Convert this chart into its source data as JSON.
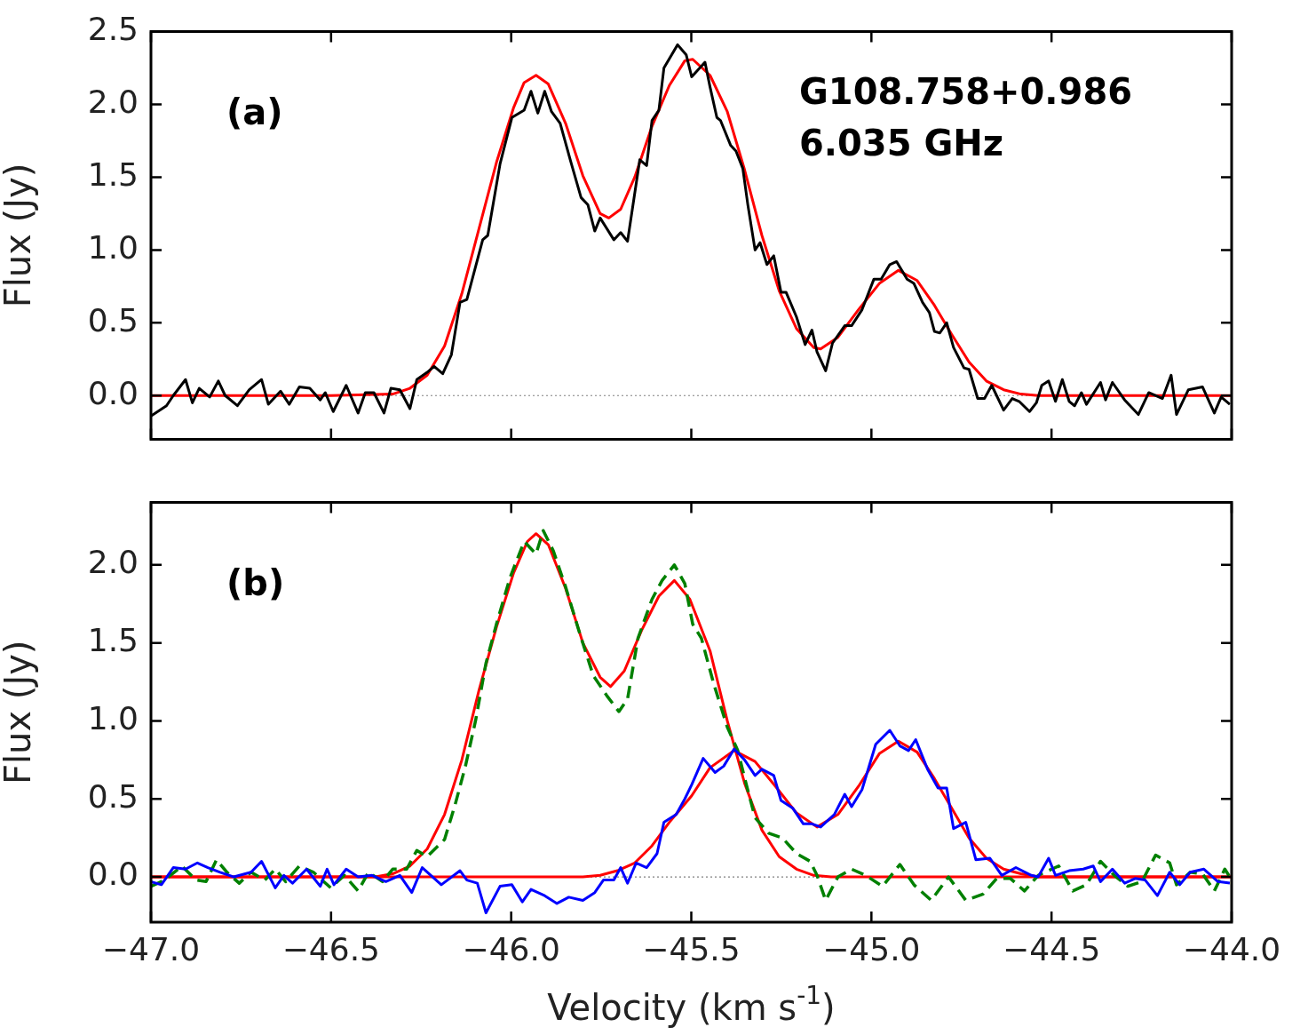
{
  "chart_data": [
    {
      "type": "line",
      "ylabel": "Flux (Jy)",
      "xlim": [
        -47,
        -44
      ],
      "ylim": [
        -0.3,
        2.5
      ],
      "xticks": [
        -47,
        -46.5,
        -46,
        -45.5,
        -45,
        -44.5,
        -44
      ],
      "yticks": [
        {
          "value": 0,
          "label": "0.0"
        },
        {
          "value": 0.5,
          "label": "0.5"
        },
        {
          "value": 1,
          "label": "1.0"
        },
        {
          "value": 1.5,
          "label": "1.5"
        },
        {
          "value": 2,
          "label": "2.0"
        },
        {
          "value": 2.5,
          "label": "2.5"
        }
      ],
      "tick_labels": "y",
      "legend": false,
      "annotations": [
        "(a)",
        "G108.758+0.986\n6.035 GHz"
      ],
      "ref_lines": [
        {
          "axis": "y",
          "value": 0,
          "color": "#808080",
          "line_style": "dotted"
        }
      ],
      "series": [
        {
          "type": "line",
          "color": "#000000",
          "line_style": "solid",
          "x": [
            -47.0,
            -46.957,
            -46.938,
            -46.904,
            -46.885,
            -46.866,
            -46.837,
            -46.813,
            -46.794,
            -46.76,
            -46.727,
            -46.693,
            -46.674,
            -46.64,
            -46.616,
            -46.588,
            -46.559,
            -46.53,
            -46.516,
            -46.494,
            -46.458,
            -46.425,
            -46.405,
            -46.381,
            -46.353,
            -46.334,
            -46.309,
            -46.281,
            -46.262,
            -46.233,
            -46.214,
            -46.19,
            -46.166,
            -46.142,
            -46.123,
            -46.079,
            -46.065,
            -46.031,
            -45.998,
            -45.964,
            -45.945,
            -45.926,
            -45.907,
            -45.888,
            -45.864,
            -45.835,
            -45.806,
            -45.787,
            -45.768,
            -45.753,
            -45.715,
            -45.696,
            -45.677,
            -45.643,
            -45.624,
            -45.609,
            -45.59,
            -45.576,
            -45.538,
            -45.514,
            -45.499,
            -45.462,
            -45.448,
            -45.429,
            -45.419,
            -45.391,
            -45.376,
            -45.357,
            -45.343,
            -45.323,
            -45.309,
            -45.29,
            -45.271,
            -45.251,
            -45.237,
            -45.208,
            -45.184,
            -45.165,
            -45.151,
            -45.127,
            -45.108,
            -45.074,
            -45.055,
            -45.026,
            -44.993,
            -44.973,
            -44.949,
            -44.93,
            -44.901,
            -44.882,
            -44.858,
            -44.839,
            -44.825,
            -44.81,
            -44.791,
            -44.772,
            -44.743,
            -44.729,
            -44.705,
            -44.686,
            -44.666,
            -44.633,
            -44.609,
            -44.59,
            -44.561,
            -44.542,
            -44.527,
            -44.508,
            -44.489,
            -44.47,
            -44.451,
            -44.436,
            -44.417,
            -44.403,
            -44.364,
            -44.35,
            -44.331,
            -44.297,
            -44.259,
            -44.23,
            -44.192,
            -44.168,
            -44.153,
            -44.12,
            -44.081,
            -44.048,
            -44.029,
            -44.005
          ],
          "values": [
            -0.14,
            -0.07,
            0.0,
            0.11,
            -0.05,
            0.05,
            -0.01,
            0.1,
            0.0,
            -0.07,
            0.04,
            0.11,
            -0.06,
            0.03,
            -0.06,
            0.06,
            0.05,
            -0.03,
            0.02,
            -0.11,
            0.07,
            -0.12,
            0.02,
            0.02,
            -0.12,
            0.05,
            0.04,
            -0.09,
            0.11,
            0.16,
            0.2,
            0.15,
            0.28,
            0.64,
            0.66,
            1.07,
            1.1,
            1.59,
            1.91,
            1.96,
            2.09,
            1.94,
            2.09,
            1.95,
            1.87,
            1.61,
            1.36,
            1.31,
            1.13,
            1.22,
            1.07,
            1.12,
            1.06,
            1.62,
            1.58,
            1.89,
            1.96,
            2.25,
            2.41,
            2.34,
            2.19,
            2.29,
            2.12,
            1.91,
            1.89,
            1.72,
            1.68,
            1.56,
            1.31,
            1.0,
            1.05,
            0.9,
            0.96,
            0.71,
            0.71,
            0.54,
            0.35,
            0.45,
            0.3,
            0.17,
            0.36,
            0.48,
            0.48,
            0.59,
            0.8,
            0.8,
            0.9,
            0.92,
            0.8,
            0.77,
            0.64,
            0.57,
            0.44,
            0.43,
            0.5,
            0.33,
            0.19,
            0.18,
            -0.02,
            -0.02,
            0.07,
            -0.1,
            -0.02,
            -0.04,
            -0.11,
            -0.05,
            0.07,
            0.1,
            -0.04,
            0.11,
            -0.04,
            -0.07,
            0.02,
            -0.06,
            0.09,
            -0.03,
            0.09,
            -0.03,
            -0.13,
            0.02,
            -0.02,
            0.14,
            -0.13,
            0.04,
            0.06,
            -0.12,
            -0.01,
            -0.06
          ]
        },
        {
          "type": "line",
          "color": "#ff0000",
          "line_style": "solid",
          "x": [
            -47.0,
            -46.5,
            -46.329,
            -46.281,
            -46.233,
            -46.185,
            -46.137,
            -46.089,
            -46.041,
            -45.993,
            -45.964,
            -45.931,
            -45.897,
            -45.849,
            -45.801,
            -45.753,
            -45.729,
            -45.696,
            -45.657,
            -45.609,
            -45.561,
            -45.518,
            -45.496,
            -45.448,
            -45.4,
            -45.352,
            -45.304,
            -45.256,
            -45.208,
            -45.16,
            -45.141,
            -45.093,
            -45.036,
            -44.978,
            -44.925,
            -44.873,
            -44.825,
            -44.777,
            -44.729,
            -44.681,
            -44.633,
            -44.585,
            -44.537,
            -44.0
          ],
          "values": [
            0,
            0,
            0.01,
            0.05,
            0.14,
            0.34,
            0.7,
            1.15,
            1.6,
            1.98,
            2.15,
            2.2,
            2.14,
            1.87,
            1.51,
            1.25,
            1.22,
            1.28,
            1.5,
            1.85,
            2.13,
            2.3,
            2.31,
            2.2,
            1.95,
            1.55,
            1.1,
            0.72,
            0.46,
            0.33,
            0.32,
            0.4,
            0.59,
            0.77,
            0.86,
            0.79,
            0.62,
            0.42,
            0.23,
            0.1,
            0.04,
            0.01,
            0,
            0
          ]
        }
      ]
    },
    {
      "type": "line",
      "xlabel": "Velocity (km s$^{-1}$)",
      "ylabel": "Flux (Jy)",
      "xlim": [
        -47,
        -44
      ],
      "ylim": [
        -0.29,
        2.4
      ],
      "xticks": [
        {
          "value": -47,
          "label": "−47.0"
        },
        {
          "value": -46.5,
          "label": "−46.5"
        },
        {
          "value": -46,
          "label": "−46.0"
        },
        {
          "value": -45.5,
          "label": "−45.5"
        },
        {
          "value": -45,
          "label": "−45.0"
        },
        {
          "value": -44.5,
          "label": "−44.5"
        },
        {
          "value": -44,
          "label": "−44.0"
        }
      ],
      "yticks": [
        {
          "value": 0,
          "label": "0.0"
        },
        {
          "value": 0.5,
          "label": "0.5"
        },
        {
          "value": 1,
          "label": "1.0"
        },
        {
          "value": 1.5,
          "label": "1.5"
        },
        {
          "value": 2,
          "label": "2.0"
        }
      ],
      "legend": false,
      "annotations": [
        "(b)"
      ],
      "ref_lines": [
        {
          "axis": "y",
          "value": 0,
          "color": "#808080",
          "line_style": "dotted"
        }
      ],
      "series": [
        {
          "type": "line",
          "color": "#0000ff",
          "line_style": "solid",
          "x": [
            -47.0,
            -46.971,
            -46.938,
            -46.904,
            -46.871,
            -46.842,
            -46.808,
            -46.77,
            -46.722,
            -46.693,
            -46.655,
            -46.631,
            -46.607,
            -46.568,
            -46.53,
            -46.511,
            -46.492,
            -46.458,
            -46.425,
            -46.386,
            -46.348,
            -46.309,
            -46.276,
            -46.247,
            -46.194,
            -46.142,
            -46.123,
            -46.094,
            -46.07,
            -46.031,
            -45.998,
            -45.969,
            -45.945,
            -45.907,
            -45.873,
            -45.84,
            -45.801,
            -45.768,
            -45.744,
            -45.715,
            -45.696,
            -45.677,
            -45.653,
            -45.624,
            -45.595,
            -45.576,
            -45.542,
            -45.518,
            -45.499,
            -45.467,
            -45.434,
            -45.41,
            -45.381,
            -45.352,
            -45.323,
            -45.304,
            -45.271,
            -45.251,
            -45.218,
            -45.189,
            -45.165,
            -45.141,
            -45.103,
            -45.074,
            -45.055,
            -45.026,
            -44.988,
            -44.949,
            -44.921,
            -44.897,
            -44.877,
            -44.844,
            -44.815,
            -44.791,
            -44.772,
            -44.738,
            -44.71,
            -44.671,
            -44.638,
            -44.599,
            -44.556,
            -44.537,
            -44.508,
            -44.489,
            -44.451,
            -44.412,
            -44.384,
            -44.364,
            -44.331,
            -44.297,
            -44.268,
            -44.24,
            -44.206,
            -44.172,
            -44.144,
            -44.115,
            -44.077,
            -44.038,
            -44.005
          ],
          "values": [
            -0.03,
            -0.05,
            0.06,
            0.05,
            0.09,
            0.06,
            0.03,
            0.0,
            0.03,
            0.1,
            -0.07,
            0.01,
            -0.04,
            0.05,
            -0.06,
            0.05,
            -0.05,
            0.05,
            0.0,
            0.01,
            -0.03,
            0.01,
            -0.1,
            0.06,
            -0.05,
            0.04,
            -0.02,
            -0.04,
            -0.23,
            -0.06,
            -0.05,
            -0.16,
            -0.08,
            -0.12,
            -0.17,
            -0.13,
            -0.15,
            -0.1,
            -0.02,
            -0.02,
            0.06,
            -0.04,
            0.09,
            0.06,
            0.15,
            0.35,
            0.4,
            0.5,
            0.59,
            0.76,
            0.67,
            0.71,
            0.82,
            0.75,
            0.65,
            0.69,
            0.65,
            0.49,
            0.44,
            0.34,
            0.34,
            0.32,
            0.4,
            0.53,
            0.45,
            0.56,
            0.85,
            0.94,
            0.84,
            0.81,
            0.88,
            0.69,
            0.57,
            0.57,
            0.31,
            0.35,
            0.11,
            0.12,
            0.01,
            0.06,
            0.01,
            0.0,
            0.12,
            0.01,
            0.04,
            0.05,
            0.07,
            -0.03,
            0.05,
            -0.04,
            -0.01,
            -0.02,
            -0.12,
            0.03,
            -0.05,
            0.03,
            0.05,
            -0.03,
            -0.04
          ]
        },
        {
          "type": "line",
          "color": "#008000",
          "line_style": "dashed",
          "x": [
            -47.0,
            -46.962,
            -46.914,
            -46.875,
            -46.847,
            -46.818,
            -46.789,
            -46.755,
            -46.722,
            -46.684,
            -46.655,
            -46.626,
            -46.588,
            -46.549,
            -46.501,
            -46.463,
            -46.425,
            -46.396,
            -46.357,
            -46.329,
            -46.29,
            -46.262,
            -46.233,
            -46.185,
            -46.156,
            -46.127,
            -46.099,
            -46.07,
            -46.041,
            -46.003,
            -45.964,
            -45.931,
            -45.911,
            -45.883,
            -45.849,
            -45.811,
            -45.772,
            -45.734,
            -45.701,
            -45.677,
            -45.648,
            -45.609,
            -45.581,
            -45.547,
            -45.518,
            -45.496,
            -45.472,
            -45.438,
            -45.4,
            -45.371,
            -45.347,
            -45.323,
            -45.285,
            -45.247,
            -45.208,
            -45.17,
            -45.151,
            -45.127,
            -45.093,
            -45.055,
            -45.016,
            -44.969,
            -44.921,
            -44.882,
            -44.834,
            -44.786,
            -44.738,
            -44.69,
            -44.652,
            -44.614,
            -44.575,
            -44.537,
            -44.48,
            -44.441,
            -44.403,
            -44.364,
            -44.326,
            -44.288,
            -44.249,
            -44.211,
            -44.172,
            -44.153,
            -44.115,
            -44.081,
            -44.048,
            -44.019,
            -44.005
          ],
          "values": [
            -0.06,
            -0.02,
            0.07,
            -0.02,
            -0.03,
            0.11,
            0.03,
            -0.04,
            0.03,
            -0.02,
            0.05,
            -0.03,
            0.07,
            0.03,
            -0.07,
            0.01,
            -0.09,
            0.03,
            -0.03,
            0.05,
            0.05,
            0.17,
            0.13,
            0.24,
            0.46,
            0.71,
            1.0,
            1.37,
            1.62,
            1.92,
            2.15,
            2.07,
            2.22,
            2.09,
            1.86,
            1.57,
            1.29,
            1.16,
            1.06,
            1.14,
            1.53,
            1.78,
            1.9,
            2.0,
            1.88,
            1.62,
            1.53,
            1.24,
            0.96,
            0.81,
            0.59,
            0.38,
            0.28,
            0.25,
            0.15,
            0.1,
            0.01,
            -0.15,
            0.0,
            0.05,
            0.01,
            -0.06,
            0.08,
            -0.05,
            -0.15,
            0.0,
            -0.15,
            -0.11,
            -0.01,
            -0.01,
            -0.09,
            0.01,
            0.07,
            -0.09,
            -0.05,
            0.1,
            0.01,
            -0.06,
            -0.03,
            0.14,
            0.09,
            -0.05,
            0.03,
            0.02,
            -0.09,
            0.05,
            0.0
          ]
        },
        {
          "type": "line",
          "color": "#ff0000",
          "line_style": "solid",
          "x": [
            -47.0,
            -46.377,
            -46.329,
            -46.281,
            -46.233,
            -46.185,
            -46.137,
            -46.089,
            -46.041,
            -45.993,
            -45.955,
            -45.931,
            -45.897,
            -45.849,
            -45.801,
            -45.753,
            -45.724,
            -45.686,
            -45.638,
            -45.59,
            -45.547,
            -45.504,
            -45.448,
            -45.4,
            -45.376,
            -45.352,
            -45.304,
            -45.256,
            -45.208,
            -45.16,
            -45.112,
            -44.0
          ],
          "values": [
            0,
            0,
            0.02,
            0.07,
            0.18,
            0.4,
            0.75,
            1.2,
            1.6,
            1.95,
            2.15,
            2.2,
            2.13,
            1.85,
            1.5,
            1.28,
            1.22,
            1.32,
            1.58,
            1.8,
            1.9,
            1.78,
            1.45,
            1.0,
            0.8,
            0.6,
            0.3,
            0.13,
            0.05,
            0.01,
            0,
            0
          ]
        },
        {
          "type": "line",
          "color": "#ff0000",
          "line_style": "solid",
          "x": [
            -47.0,
            -45.801,
            -45.753,
            -45.705,
            -45.657,
            -45.609,
            -45.561,
            -45.499,
            -45.448,
            -45.381,
            -45.323,
            -45.266,
            -45.208,
            -45.151,
            -45.093,
            -45.036,
            -44.978,
            -44.925,
            -44.873,
            -44.825,
            -44.777,
            -44.729,
            -44.681,
            -44.633,
            -44.585,
            -44.537,
            -44.0
          ],
          "values": [
            0,
            0,
            0.01,
            0.04,
            0.09,
            0.2,
            0.35,
            0.52,
            0.7,
            0.81,
            0.74,
            0.58,
            0.41,
            0.32,
            0.4,
            0.58,
            0.79,
            0.87,
            0.8,
            0.63,
            0.44,
            0.25,
            0.12,
            0.05,
            0.02,
            0,
            0
          ]
        }
      ]
    }
  ]
}
